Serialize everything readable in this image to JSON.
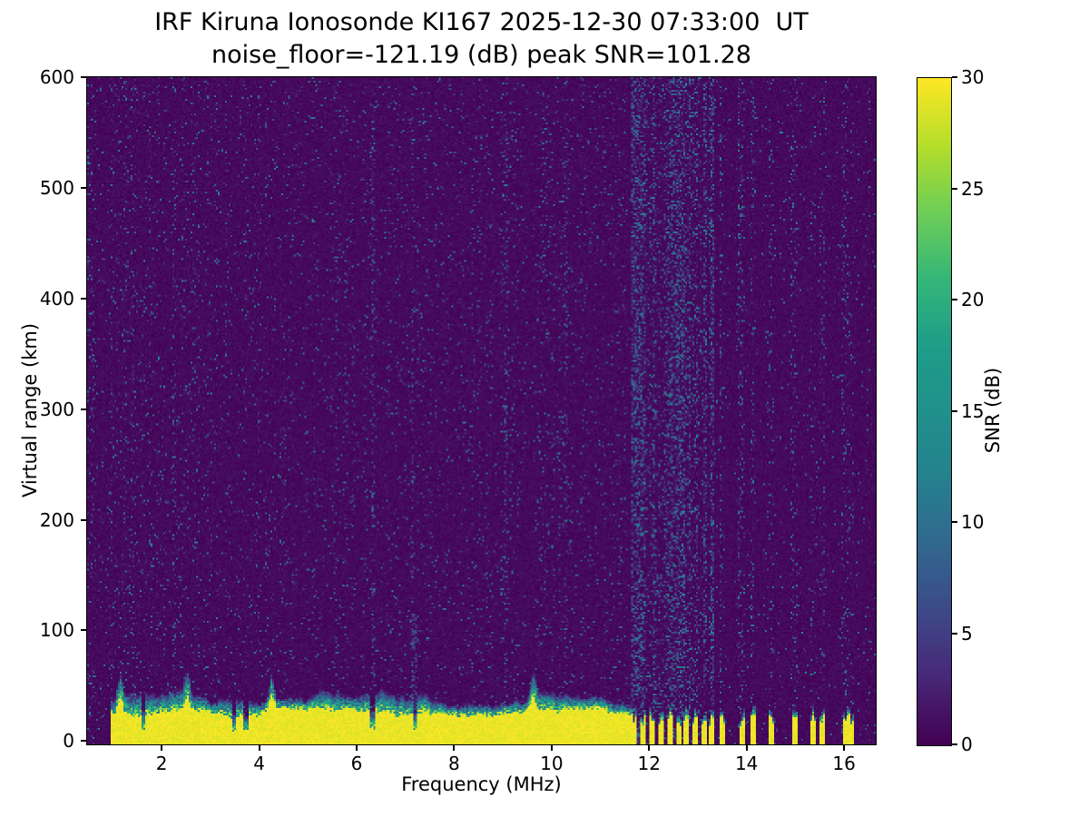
{
  "chart_data": {
    "type": "heatmap",
    "title": "IRF Kiruna Ionosonde KI167 2025-12-30 07:33:00  UT",
    "subtitle": "noise_floor=-121.19 (dB) peak SNR=101.28",
    "station": "IRF Kiruna Ionosonde KI167",
    "timestamp_ut": "2025-12-30 07:33:00",
    "noise_floor_db": -121.19,
    "peak_snr_db": 101.28,
    "xlabel": "Frequency (MHz)",
    "ylabel": "Virtual range (km)",
    "colorbar_label": "SNR (dB)",
    "xlim": [
      0.47,
      16.65
    ],
    "ylim": [
      -3,
      600
    ],
    "clim": [
      0,
      30
    ],
    "xticks": [
      2,
      4,
      6,
      8,
      10,
      12,
      14,
      16
    ],
    "yticks": [
      0,
      100,
      200,
      300,
      400,
      500,
      600
    ],
    "colorbar_ticks": [
      0,
      5,
      10,
      15,
      20,
      25,
      30
    ],
    "colormap": "viridis",
    "colormap_stops": [
      {
        "t": 0.0,
        "c": "#440154"
      },
      {
        "t": 0.1,
        "c": "#482878"
      },
      {
        "t": 0.2,
        "c": "#3e4a89"
      },
      {
        "t": 0.3,
        "c": "#31688e"
      },
      {
        "t": 0.4,
        "c": "#26828e"
      },
      {
        "t": 0.5,
        "c": "#21918c"
      },
      {
        "t": 0.6,
        "c": "#1f9e89"
      },
      {
        "t": 0.7,
        "c": "#35b779"
      },
      {
        "t": 0.8,
        "c": "#6ece58"
      },
      {
        "t": 0.9,
        "c": "#b5de2b"
      },
      {
        "t": 1.0,
        "c": "#fde725"
      }
    ],
    "ground_echo_band": {
      "freq_start_mhz": 0.95,
      "freq_continuous_end_mhz": 11.62,
      "top_km_mean": 24,
      "transition_km": 16,
      "snr_db": 30,
      "notch_freqs_mhz": [
        1.62,
        3.48,
        3.72,
        6.32,
        7.2
      ],
      "bump_freqs_mhz": [
        1.15,
        2.52,
        4.25,
        9.62
      ]
    },
    "pulsed_columns_mhz": [
      11.7,
      11.88,
      12.06,
      12.24,
      12.42,
      12.6,
      12.78,
      12.96,
      13.12,
      13.28,
      13.52,
      13.9,
      14.14,
      14.5,
      14.98,
      15.36,
      15.54,
      16.02,
      16.14
    ],
    "interference_region_mhz": [
      11.64,
      13.34
    ],
    "interference_columns_mhz": [
      2.25,
      3.42,
      4.3,
      6.35,
      7.18,
      9.05,
      10.3
    ],
    "plumes": [
      {
        "f_mhz": 7.18,
        "from_km": 28,
        "to_km": 115,
        "max_snr": 7
      }
    ],
    "background_noise": {
      "base_snr_max": 1.3,
      "speckle_prob": 0.045,
      "speckle_snr_max": 11
    },
    "seed": 20251230
  }
}
